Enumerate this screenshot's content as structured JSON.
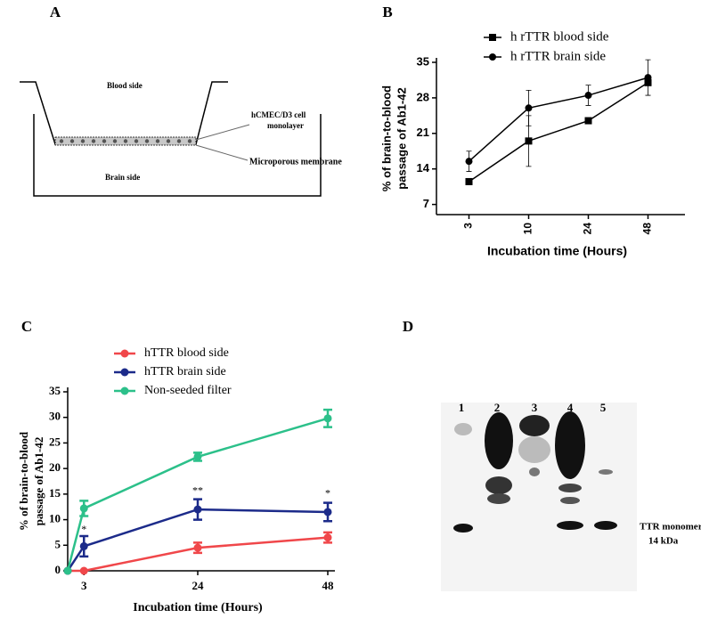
{
  "panel_labels": [
    "A",
    "B",
    "C",
    "D"
  ],
  "diagram": {
    "top": "Blood side",
    "cell_label": [
      "hCMEC/D3 cell",
      "monolayer"
    ],
    "membrane_label": "Microporous membrane",
    "bottom": "Brain side"
  },
  "blot": {
    "lanes": [
      "1",
      "2",
      "3",
      "4",
      "5"
    ],
    "annotation": [
      "TTR monomer",
      "14 kDa"
    ]
  },
  "chart_data": [
    {
      "type": "line",
      "ylabel": [
        "% of brain-to-blood",
        "passage of  Ab1-42"
      ],
      "xlabel": "Incubation time (Hours)",
      "categories": [
        "3",
        "10",
        "24",
        "48"
      ],
      "series": [
        {
          "name": "h rTTR blood side",
          "color": "#000000",
          "marker": "square",
          "values": [
            11.5,
            19.5,
            23.5,
            31
          ],
          "errors": [
            0,
            5,
            0.5,
            0.5
          ]
        },
        {
          "name": "h rTTR brain side",
          "color": "#000000",
          "marker": "circle",
          "values": [
            15.5,
            26,
            28.5,
            32
          ],
          "errors": [
            2,
            3.5,
            2,
            3.5
          ]
        }
      ],
      "ylim": [
        5,
        35
      ],
      "yticks": [
        7,
        14,
        21,
        28,
        35
      ],
      "legend": "top-left"
    },
    {
      "type": "line",
      "ylabel": [
        "% of brain-to-blood",
        "passage of Ab1-42"
      ],
      "xlabel": "Incubation time (Hours)",
      "x": [
        0,
        3,
        24,
        48
      ],
      "series": [
        {
          "name": "hTTR blood side",
          "color": "#f0474a",
          "marker": "circle",
          "values": [
            0,
            0,
            4.5,
            6.5
          ],
          "errors": [
            0,
            0,
            1,
            1
          ]
        },
        {
          "name": "hTTR brain side",
          "color": "#1c2b8a",
          "marker": "circle",
          "values": [
            0,
            4.8,
            12,
            11.5
          ],
          "errors": [
            0,
            2,
            2,
            1.8
          ]
        },
        {
          "name": "Non-seeded filter",
          "color": "#2cc08a",
          "marker": "circle",
          "values": [
            0,
            12.2,
            22.3,
            29.8
          ],
          "errors": [
            0,
            1.5,
            0.8,
            1.7
          ]
        }
      ],
      "annotations": [
        {
          "text": "*",
          "x": 3,
          "y": 8
        },
        {
          "text": "**",
          "x": 24,
          "y": 15.5
        },
        {
          "text": "*",
          "x": 48,
          "y": 15
        }
      ],
      "xlim": [
        0,
        48
      ],
      "xticks": [
        3,
        24,
        48
      ],
      "ylim": [
        0,
        35
      ],
      "yticks": [
        0,
        5,
        10,
        15,
        20,
        25,
        30,
        35
      ],
      "legend": "top-left"
    }
  ]
}
